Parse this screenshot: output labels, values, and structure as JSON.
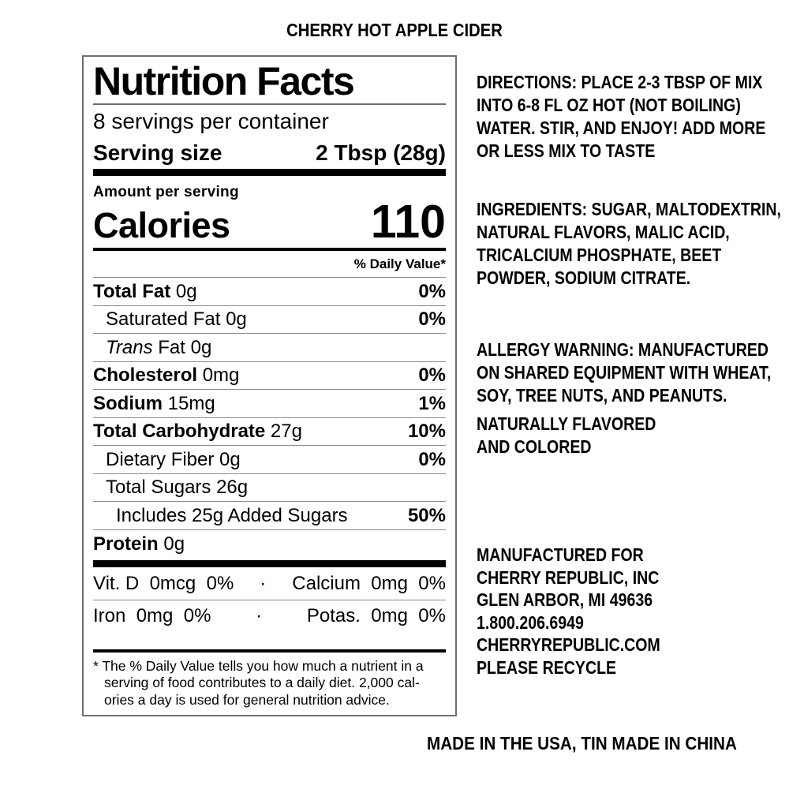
{
  "page": {
    "product_title": "CHERRY HOT APPLE CIDER",
    "made_in": "MADE IN THE USA, TIN MADE IN CHINA"
  },
  "nutrition": {
    "title": "Nutrition Facts",
    "servings_per_container": "8 servings per container",
    "serving_size_label": "Serving size",
    "serving_size_value": "2 Tbsp (28g)",
    "amount_per_serving": "Amount per serving",
    "calories_label": "Calories",
    "calories_value": "110",
    "daily_value_header": "% Daily Value*",
    "rows": [
      {
        "name": "Total Fat",
        "amount": "0g",
        "dv": "0%",
        "bold": true,
        "indent": 0
      },
      {
        "name": "Saturated Fat",
        "amount": "0g",
        "dv": "0%",
        "bold": false,
        "indent": 1
      },
      {
        "name": "Trans Fat",
        "amount": "0g",
        "dv": "",
        "bold": false,
        "indent": 1,
        "italic_word": "Trans"
      },
      {
        "name": "Cholesterol",
        "amount": "0mg",
        "dv": "0%",
        "bold": true,
        "indent": 0
      },
      {
        "name": "Sodium",
        "amount": "15mg",
        "dv": "1%",
        "bold": true,
        "indent": 0
      },
      {
        "name": "Total Carbohydrate",
        "amount": "27g",
        "dv": "10%",
        "bold": true,
        "indent": 0
      },
      {
        "name": "Dietary Fiber",
        "amount": "0g",
        "dv": "0%",
        "bold": false,
        "indent": 1
      },
      {
        "name": "Total Sugars",
        "amount": "26g",
        "dv": "",
        "bold": false,
        "indent": 1
      },
      {
        "name": "Includes 25g Added Sugars",
        "amount": "",
        "dv": "50%",
        "bold": false,
        "indent": 2
      },
      {
        "name": "Protein",
        "amount": "0g",
        "dv": "",
        "bold": true,
        "indent": 0
      }
    ],
    "vitamins": [
      {
        "left": "Vit. D  0mcg  0%",
        "sep": "·",
        "right": "Calcium  0mg  0%"
      },
      {
        "left": "Iron  0mg  0%",
        "sep": "·",
        "right": "Potas.  0mg  0%"
      }
    ],
    "footnote": "* The % Daily Value tells you how much a nutrient in a\nserving of food contributes to a daily diet. 2,000 cal-\nories a day is used for general nutrition advice."
  },
  "right_column": {
    "directions": {
      "label": "DIRECTIONS: ",
      "text": "PLACE 2-3 TBSP OF MIX\nINTO 6-8 FL OZ HOT (NOT BOILING)\nWATER. STIR, AND ENJOY! ADD MORE\nOR LESS MIX TO TASTE"
    },
    "ingredients": {
      "label": "INGREDIENTS: ",
      "text": "SUGAR, MALTODEXTRIN,\nNATURAL FLAVORS, MALIC ACID,\nTRICALCIUM PHOSPHATE, BEET\nPOWDER, SODIUM CITRATE."
    },
    "allergy": {
      "label": "ALLERGY WARNING: ",
      "text": "MANUFACTURED\nON SHARED EQUIPMENT WITH WHEAT,\nSOY, TREE NUTS, AND PEANUTS."
    },
    "naturally": {
      "text": "NATURALLY FLAVORED\nAND COLORED"
    },
    "manufacturer": {
      "text": "MANUFACTURED FOR\nCHERRY REPUBLIC, INC\nGLEN ARBOR, MI 49636\n1.800.206.6949\nCHERRYREPUBLIC.COM\nPLEASE RECYCLE"
    }
  },
  "colors": {
    "text": "#000000",
    "hairline": "#8a8a8a",
    "bar": "#000000",
    "panel_border": "#6f6f6f",
    "background": "#ffffff"
  }
}
